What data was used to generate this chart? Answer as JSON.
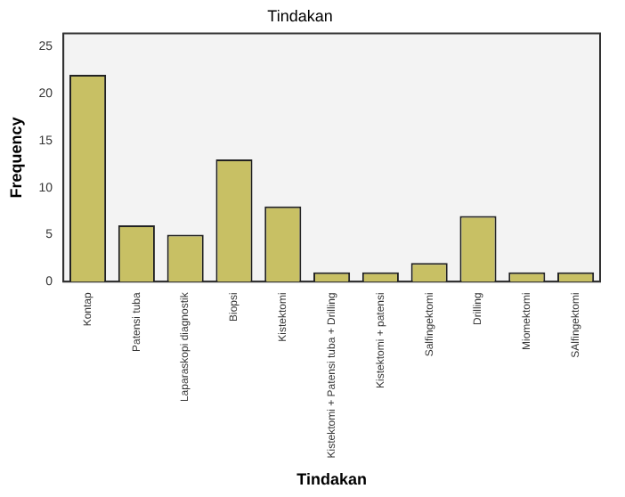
{
  "chart_data": {
    "type": "bar",
    "title": "Tindakan",
    "xlabel": "Tindakan",
    "ylabel": "Frequency",
    "categories": [
      "Kontap",
      "Patensi tuba",
      "Laparaskopi diagnostik",
      "Biopsi",
      "Kistektomi",
      "Kistektomi + Patensi tuba + Drilling",
      "Kistektomi + patensi",
      "Salfingektomi",
      "Drilling",
      "Miomektomi",
      "SAlfingektomi"
    ],
    "values": [
      22,
      6,
      5,
      13,
      8,
      1,
      1,
      2,
      7,
      1,
      1
    ],
    "color": "#c8c064",
    "ylim": [
      0,
      26.4
    ],
    "yticks": [
      0,
      5,
      10,
      15,
      20,
      25
    ],
    "grid": false,
    "legend": false
  }
}
